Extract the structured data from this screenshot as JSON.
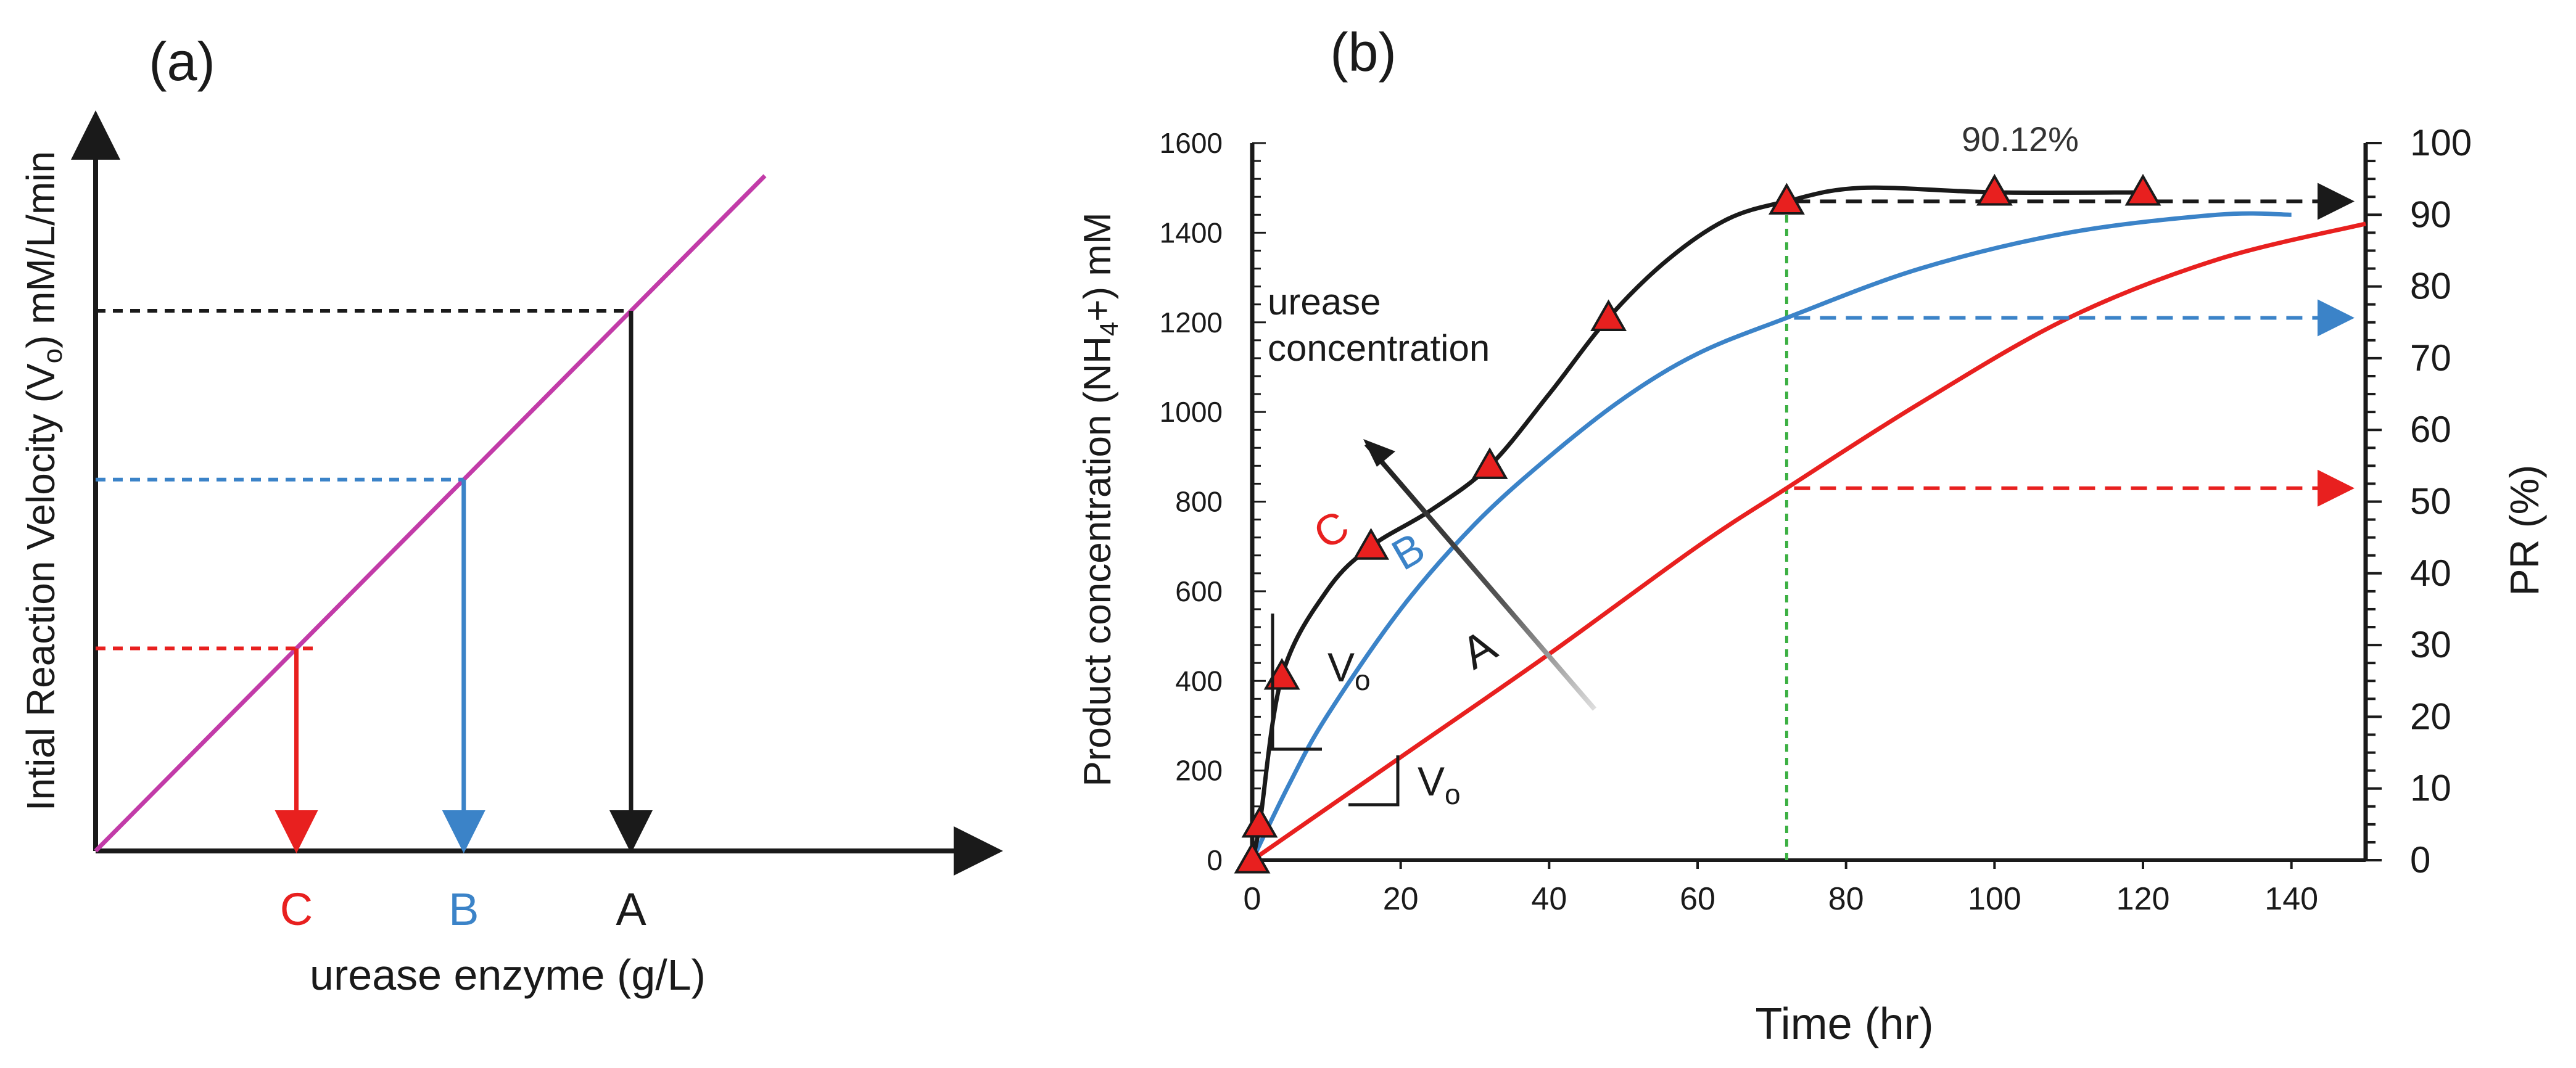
{
  "chart_data": [
    {
      "panel": "(a)",
      "type": "line",
      "title": "",
      "xlabel": "urease enzyme (g/L)",
      "ylabel": "Intial Reaction Velocity (Vₒ) mM/L/min",
      "xlim": [
        0,
        10
      ],
      "ylim": [
        0,
        10
      ],
      "line": {
        "color": "#c23ba8",
        "x": [
          0,
          10
        ],
        "y": [
          0,
          10
        ]
      },
      "points": [
        {
          "label": "C",
          "x": 3.0,
          "y": 3.0,
          "color": "#e8201f"
        },
        {
          "label": "B",
          "x": 5.5,
          "y": 5.5,
          "color": "#3b83c8"
        },
        {
          "label": "A",
          "x": 8.0,
          "y": 8.0,
          "color": "#1a1a1a"
        }
      ]
    },
    {
      "panel": "(b)",
      "type": "line",
      "title": "",
      "xlabel": "Time (hr)",
      "ylabel": "Product concentration (NH₄+) mM",
      "y2label": "PR (%)",
      "xlim": [
        0,
        150
      ],
      "ylim": [
        0,
        1600
      ],
      "y2lim": [
        0,
        100
      ],
      "xticks": [
        0,
        20,
        40,
        60,
        80,
        100,
        120,
        140
      ],
      "yticks": [
        0,
        200,
        400,
        600,
        800,
        1000,
        1200,
        1400,
        1600
      ],
      "y2ticks": [
        0,
        10,
        20,
        30,
        40,
        50,
        60,
        70,
        80,
        90,
        100
      ],
      "series": [
        {
          "name": "C",
          "color": "#1a1a1a",
          "x": [
            0,
            1,
            4,
            10,
            16,
            24,
            32,
            40,
            48,
            56,
            64,
            72,
            82,
            100,
            120
          ],
          "y": [
            0,
            80,
            410,
            600,
            700,
            780,
            880,
            1040,
            1210,
            1340,
            1430,
            1470,
            1500,
            1490,
            1490
          ]
        },
        {
          "name": "B",
          "color": "#3b83c8",
          "x": [
            0,
            5,
            10,
            20,
            30,
            40,
            50,
            60,
            72,
            90,
            110,
            130,
            140
          ],
          "y": [
            0,
            170,
            320,
            560,
            750,
            900,
            1030,
            1130,
            1210,
            1320,
            1400,
            1440,
            1440
          ]
        },
        {
          "name": "A",
          "color": "#e8201f",
          "x": [
            0,
            20,
            40,
            60,
            72,
            90,
            110,
            130,
            150
          ],
          "y": [
            0,
            230,
            460,
            700,
            830,
            1020,
            1210,
            1340,
            1420
          ]
        }
      ],
      "markers": {
        "series": "C",
        "x": [
          0,
          1,
          4,
          16,
          32,
          48,
          72,
          100,
          120
        ],
        "color": "#e8201f"
      },
      "vline": {
        "x": 72,
        "color": "#3cb043"
      },
      "projections": [
        {
          "series": "C",
          "y": 1470,
          "color": "#1a1a1a"
        },
        {
          "series": "B",
          "y": 1210,
          "color": "#3b83c8"
        },
        {
          "series": "A",
          "y": 830,
          "color": "#e8201f"
        }
      ],
      "annotations": {
        "percent": "90.12%",
        "arrow_text_line1": "urease",
        "arrow_text_line2": "concentration",
        "label_c": "C",
        "label_b": "B",
        "label_a": "A",
        "v0": "V",
        "v0_sub": "o"
      }
    }
  ]
}
